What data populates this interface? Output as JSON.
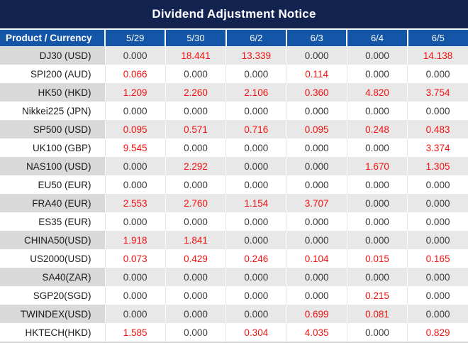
{
  "title": "Dividend Adjustment Notice",
  "colors": {
    "title_bg": "#122350",
    "header_bg": "#1355a7",
    "row_alt_product_bg": "#d9d9d9",
    "row_alt_data_bg": "#e8e8e8",
    "row_plain_bg": "#ffffff",
    "value_default": "#3a3a3a",
    "value_highlight": "#f2120f",
    "border_light": "#d6d6d6"
  },
  "chart_data": {
    "type": "table",
    "title": "Dividend Adjustment Notice",
    "columns": [
      "Product / Currency",
      "5/29",
      "5/30",
      "6/2",
      "6/3",
      "6/4",
      "6/5"
    ],
    "value_color_rule": "zero values dark gray, non-zero values red",
    "rows": [
      {
        "product": "DJ30 (USD)",
        "values": [
          "0.000",
          "18.441",
          "13.339",
          "0.000",
          "0.000",
          "14.138"
        ]
      },
      {
        "product": "SPI200 (AUD)",
        "values": [
          "0.066",
          "0.000",
          "0.000",
          "0.114",
          "0.000",
          "0.000"
        ]
      },
      {
        "product": "HK50 (HKD)",
        "values": [
          "1.209",
          "2.260",
          "2.106",
          "0.360",
          "4.820",
          "3.754"
        ]
      },
      {
        "product": "Nikkei225 (JPN)",
        "values": [
          "0.000",
          "0.000",
          "0.000",
          "0.000",
          "0.000",
          "0.000"
        ]
      },
      {
        "product": "SP500 (USD)",
        "values": [
          "0.095",
          "0.571",
          "0.716",
          "0.095",
          "0.248",
          "0.483"
        ]
      },
      {
        "product": "UK100 (GBP)",
        "values": [
          "9.545",
          "0.000",
          "0.000",
          "0.000",
          "0.000",
          "3.374"
        ]
      },
      {
        "product": "NAS100 (USD)",
        "values": [
          "0.000",
          "2.292",
          "0.000",
          "0.000",
          "1.670",
          "1.305"
        ]
      },
      {
        "product": "EU50 (EUR)",
        "values": [
          "0.000",
          "0.000",
          "0.000",
          "0.000",
          "0.000",
          "0.000"
        ]
      },
      {
        "product": "FRA40 (EUR)",
        "values": [
          "2.553",
          "2.760",
          "1.154",
          "3.707",
          "0.000",
          "0.000"
        ]
      },
      {
        "product": "ES35 (EUR)",
        "values": [
          "0.000",
          "0.000",
          "0.000",
          "0.000",
          "0.000",
          "0.000"
        ]
      },
      {
        "product": "CHINA50(USD)",
        "values": [
          "1.918",
          "1.841",
          "0.000",
          "0.000",
          "0.000",
          "0.000"
        ]
      },
      {
        "product": "US2000(USD)",
        "values": [
          "0.073",
          "0.429",
          "0.246",
          "0.104",
          "0.015",
          "0.165"
        ]
      },
      {
        "product": "SA40(ZAR)",
        "values": [
          "0.000",
          "0.000",
          "0.000",
          "0.000",
          "0.000",
          "0.000"
        ]
      },
      {
        "product": "SGP20(SGD)",
        "values": [
          "0.000",
          "0.000",
          "0.000",
          "0.000",
          "0.215",
          "0.000"
        ]
      },
      {
        "product": "TWINDEX(USD)",
        "values": [
          "0.000",
          "0.000",
          "0.000",
          "0.699",
          "0.081",
          "0.000"
        ]
      },
      {
        "product": "HKTECH(HKD)",
        "values": [
          "1.585",
          "0.000",
          "0.304",
          "4.035",
          "0.000",
          "0.829"
        ]
      }
    ]
  }
}
